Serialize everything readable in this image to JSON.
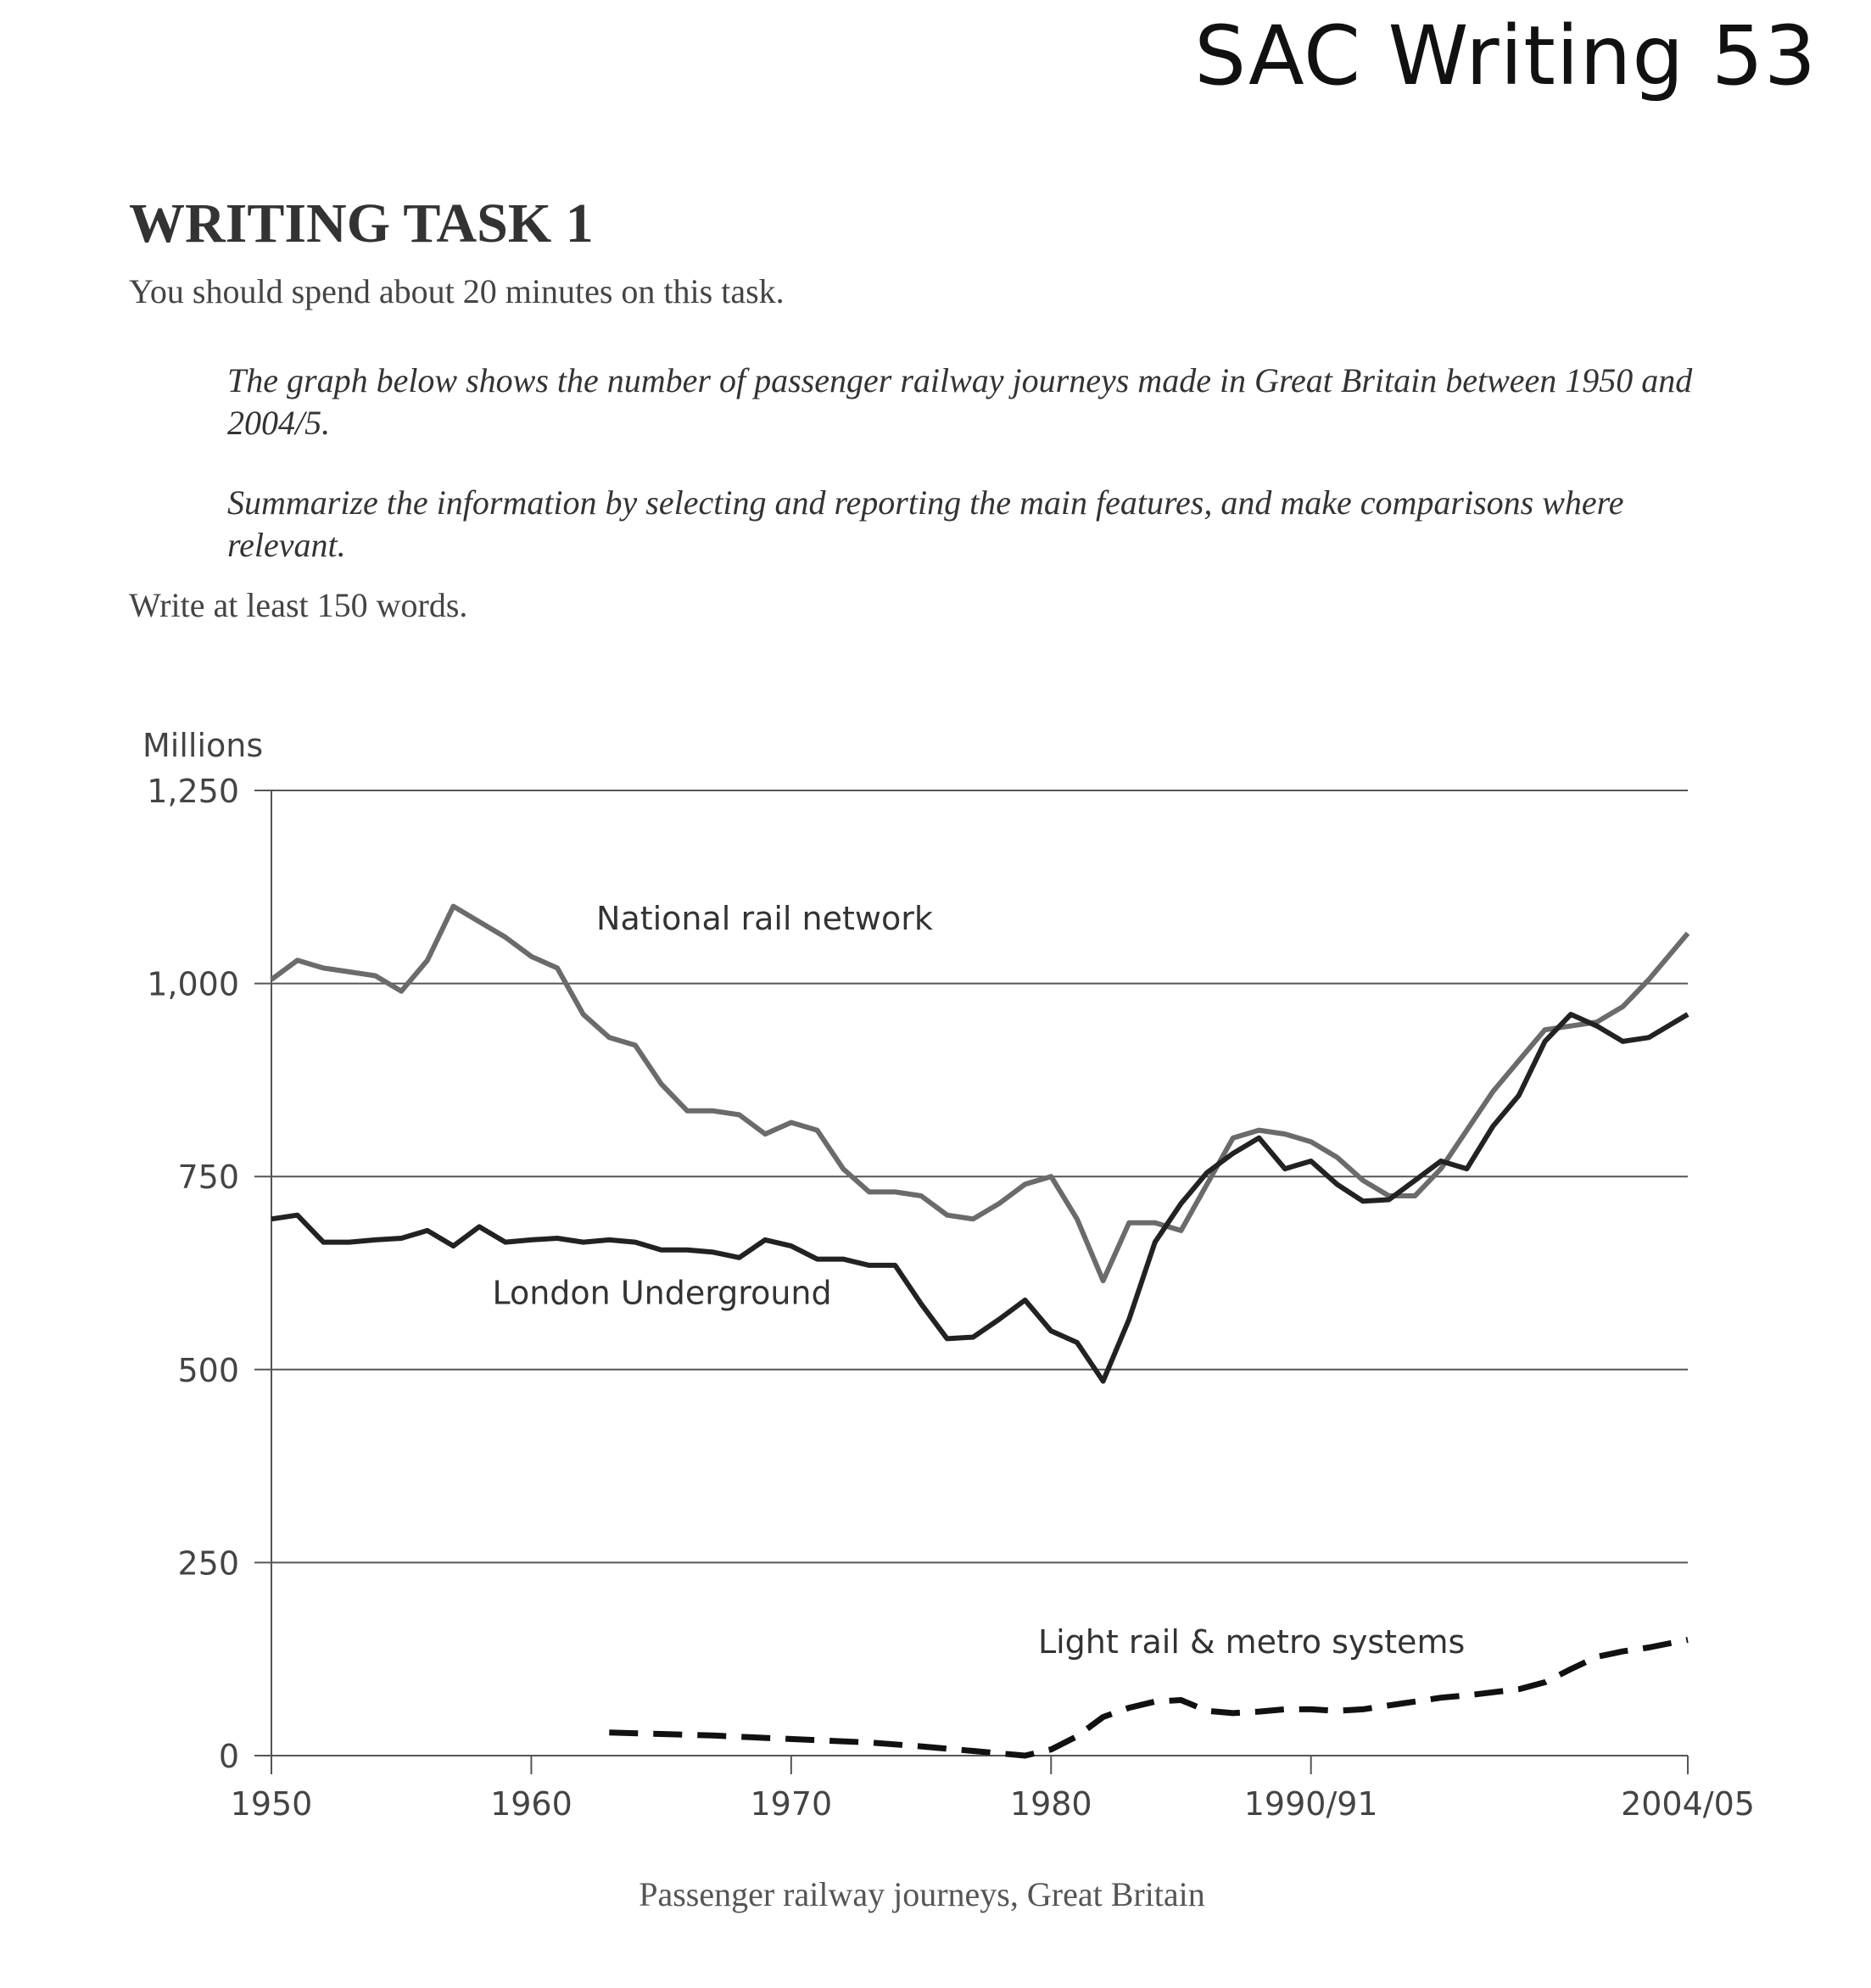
{
  "header": {
    "corner_title": "SAC Writing 53",
    "task_heading": "WRITING TASK 1",
    "instruction": "You should spend about 20 minutes on this task.",
    "prompt_1": "The graph below shows the number of passenger railway journeys made in Great Britain between 1950 and 2004/5.",
    "prompt_2": "Summarize the information by selecting and reporting the main features, and make comparisons where relevant.",
    "min_words": "Write at least 150 words."
  },
  "chart_data": {
    "type": "line",
    "title": "",
    "xlabel": "",
    "ylabel": "Millions",
    "caption": "Passenger railway journeys, Great Britain",
    "xlim": [
      1950,
      2004.5
    ],
    "ylim": [
      0,
      1250
    ],
    "x_ticks": [
      1950,
      1960,
      1970,
      1980,
      1990,
      2004.5
    ],
    "x_tick_labels": [
      "1950",
      "1960",
      "1970",
      "1980",
      "1990/91",
      "2004/05"
    ],
    "y_ticks": [
      0,
      250,
      500,
      750,
      1000,
      1250
    ],
    "y_tick_labels": [
      "0",
      "250",
      "500",
      "750",
      "1,000",
      "1,250"
    ],
    "grid": "horizontal",
    "series": [
      {
        "name": "National rail network",
        "style": "solid",
        "color": "#6b6b6b",
        "x": [
          1950,
          1951,
          1952,
          1953,
          1954,
          1955,
          1956,
          1957,
          1958,
          1959,
          1960,
          1961,
          1962,
          1963,
          1964,
          1965,
          1966,
          1967,
          1968,
          1969,
          1970,
          1971,
          1972,
          1973,
          1974,
          1975,
          1976,
          1977,
          1978,
          1979,
          1980,
          1981,
          1982,
          1983,
          1984,
          1985,
          1986,
          1987,
          1988,
          1989,
          1990,
          1991,
          1992,
          1993,
          1994,
          1995,
          1996,
          1997,
          1998,
          1999,
          2000,
          2001,
          2002,
          2003,
          2004.5
        ],
        "values": [
          1005,
          1030,
          1020,
          1015,
          1010,
          990,
          1030,
          1100,
          1080,
          1060,
          1035,
          1020,
          960,
          930,
          920,
          870,
          835,
          835,
          830,
          805,
          820,
          810,
          760,
          730,
          730,
          725,
          700,
          695,
          715,
          740,
          750,
          695,
          615,
          690,
          690,
          680,
          740,
          800,
          810,
          805,
          795,
          775,
          745,
          725,
          725,
          760,
          810,
          860,
          900,
          940,
          945,
          950,
          970,
          1005,
          1065
        ]
      },
      {
        "name": "London Underground",
        "style": "solid",
        "color": "#222222",
        "x": [
          1950,
          1951,
          1952,
          1953,
          1954,
          1955,
          1956,
          1957,
          1958,
          1959,
          1960,
          1961,
          1962,
          1963,
          1964,
          1965,
          1966,
          1967,
          1968,
          1969,
          1970,
          1971,
          1972,
          1973,
          1974,
          1975,
          1976,
          1977,
          1978,
          1979,
          1980,
          1981,
          1982,
          1983,
          1984,
          1985,
          1986,
          1987,
          1988,
          1989,
          1990,
          1991,
          1992,
          1993,
          1994,
          1995,
          1996,
          1997,
          1998,
          1999,
          2000,
          2001,
          2002,
          2003,
          2004.5
        ],
        "values": [
          695,
          700,
          665,
          665,
          668,
          670,
          680,
          660,
          685,
          665,
          668,
          670,
          665,
          668,
          665,
          655,
          655,
          652,
          645,
          668,
          660,
          643,
          643,
          635,
          635,
          585,
          540,
          542,
          565,
          590,
          550,
          535,
          485,
          565,
          665,
          715,
          755,
          780,
          800,
          760,
          770,
          740,
          718,
          720,
          745,
          770,
          760,
          815,
          855,
          925,
          960,
          945,
          925,
          930,
          960
        ]
      },
      {
        "name": "Light rail & metro systems",
        "style": "dashed",
        "color": "#111111",
        "x": [
          1963,
          1965,
          1967,
          1969,
          1971,
          1973,
          1975,
          1977,
          1979,
          1980,
          1981,
          1982,
          1983,
          1984,
          1985,
          1986,
          1987,
          1988,
          1989,
          1990,
          1991,
          1992,
          1993,
          1994,
          1995,
          1996,
          1997,
          1998,
          1999,
          2000,
          2001,
          2002,
          2003,
          2004.5
        ],
        "values": [
          30,
          28,
          26,
          23,
          20,
          17,
          12,
          6,
          0,
          8,
          25,
          50,
          62,
          70,
          72,
          58,
          55,
          57,
          60,
          60,
          58,
          60,
          65,
          70,
          75,
          78,
          82,
          86,
          95,
          112,
          128,
          135,
          140,
          150
        ]
      }
    ]
  }
}
